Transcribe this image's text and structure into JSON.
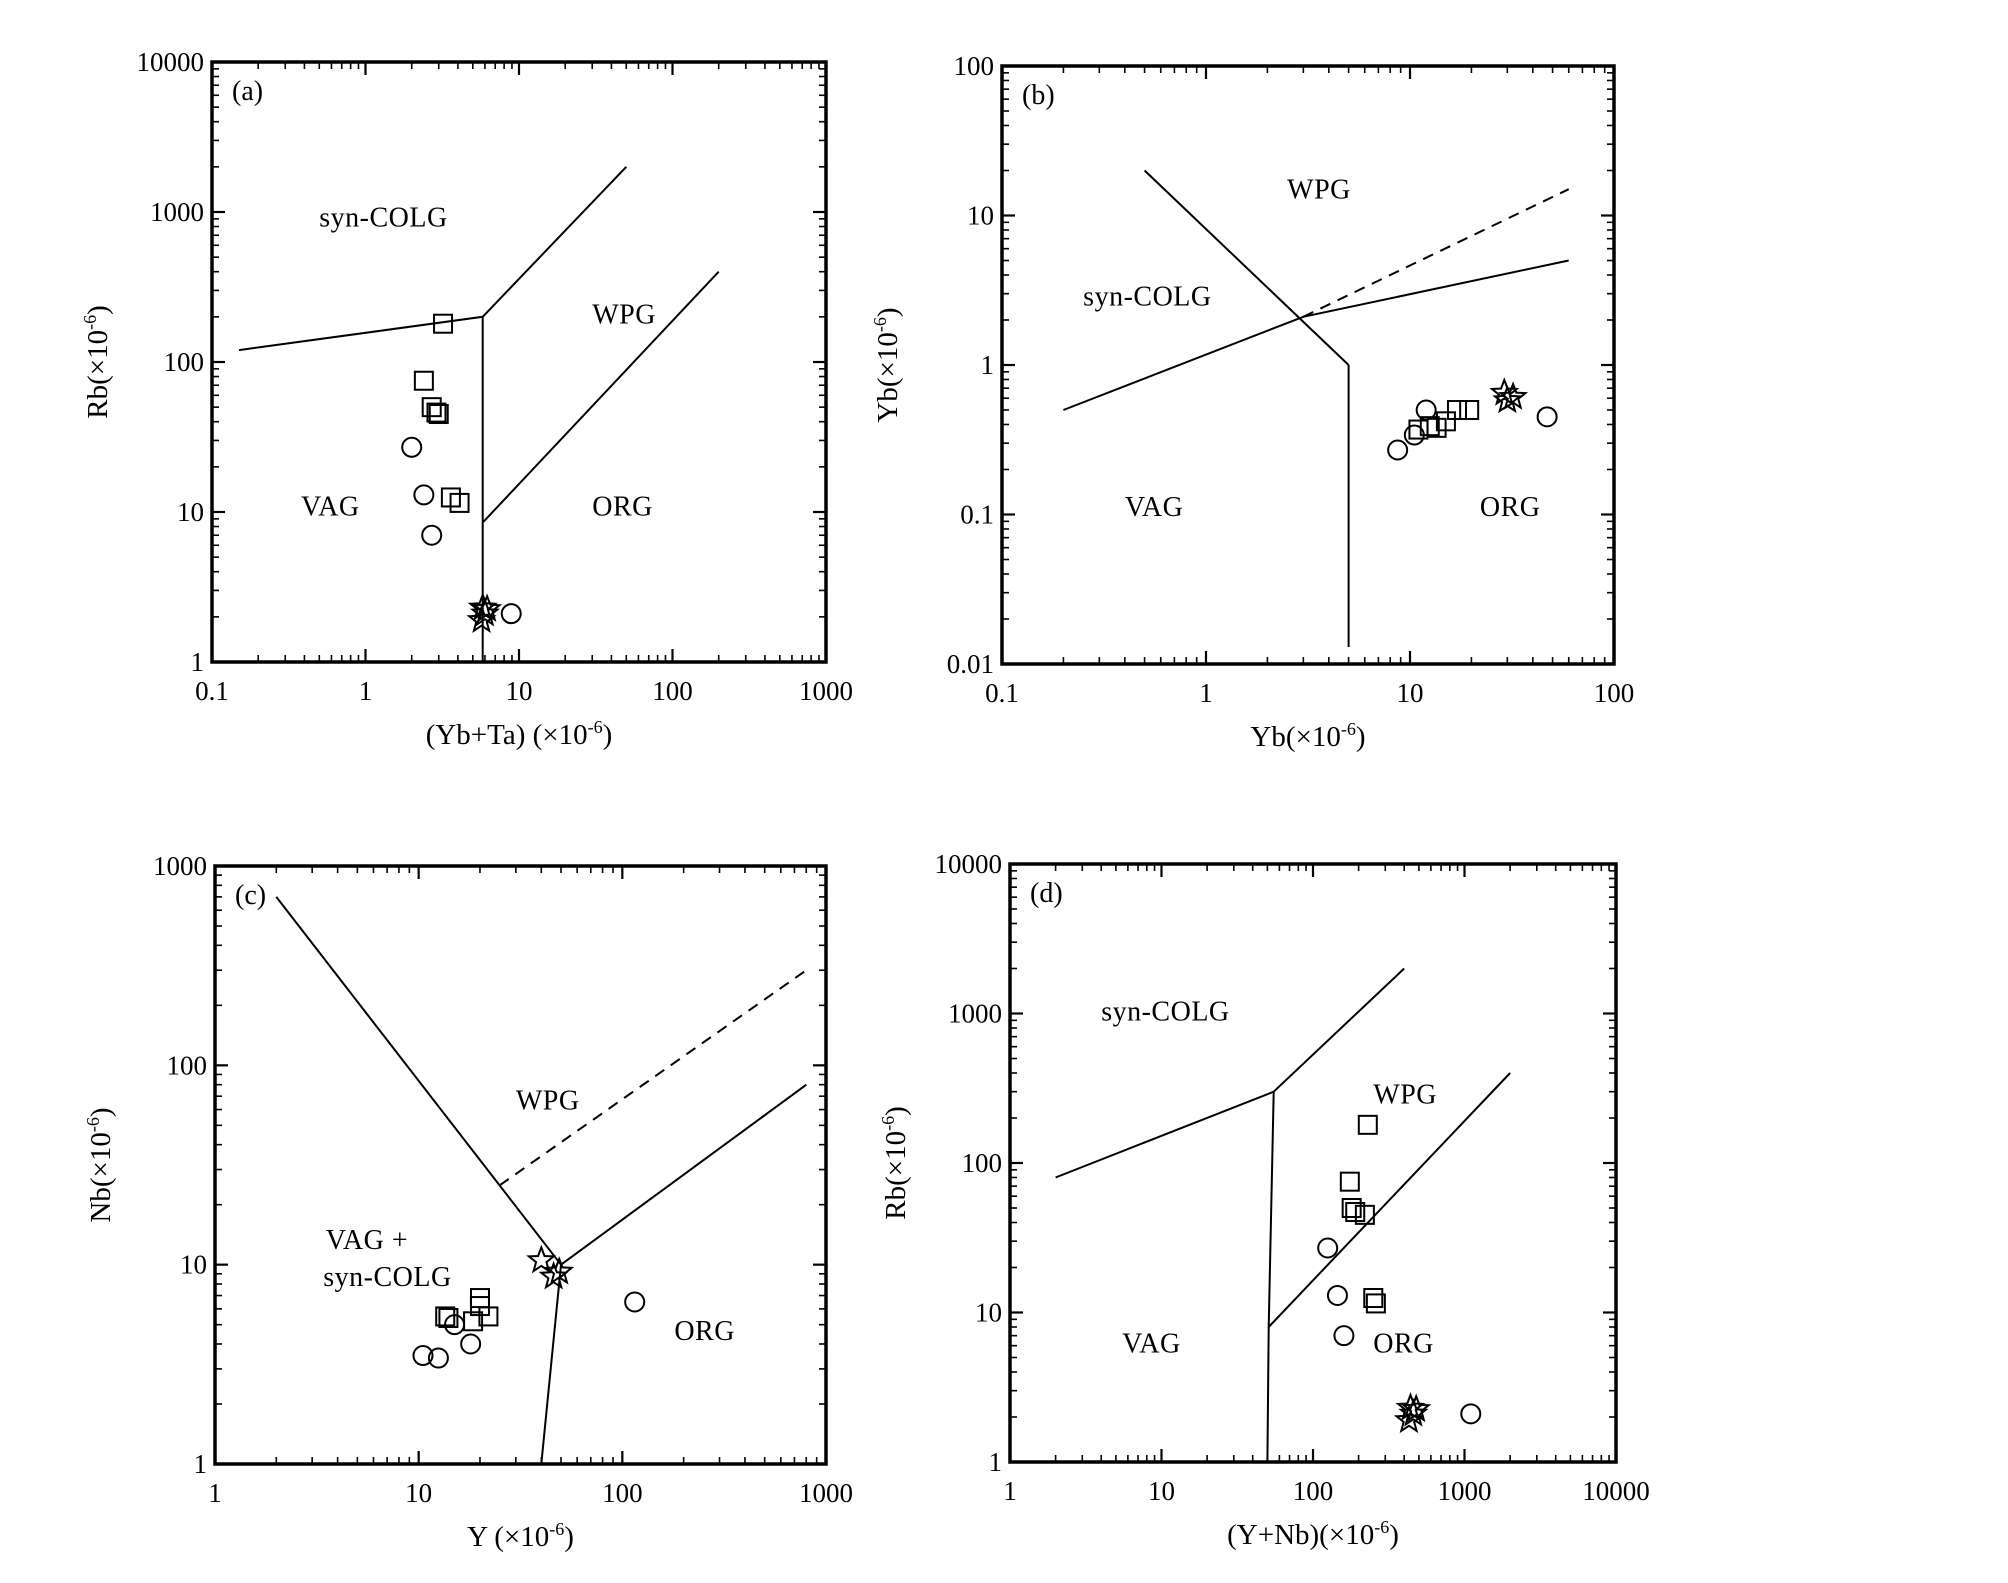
{
  "chart_data": [
    {
      "id": "a",
      "type": "scatter",
      "panel_label": "(a)",
      "xscale": "log",
      "yscale": "log",
      "xlim": [
        0.1,
        1000
      ],
      "ylim": [
        1,
        10000
      ],
      "xticks": [
        "0.1",
        "1",
        "10",
        "100",
        "1000"
      ],
      "yticks": [
        "1",
        "10",
        "100",
        "1000",
        "10000"
      ],
      "xlabel": "(Yb+Ta) (×10",
      "xlabel_sup": "-6",
      "xlabel_end": ")",
      "ylabel": "Rb(×10",
      "ylabel_sup": "-6",
      "ylabel_end": ")",
      "fields": [
        {
          "text": "syn-COLG",
          "x": 0.5,
          "y": 800
        },
        {
          "text": "WPG",
          "x": 30,
          "y": 180
        },
        {
          "text": "VAG",
          "x": 0.38,
          "y": 9.5
        },
        {
          "text": "ORG",
          "x": 30,
          "y": 9.5
        }
      ],
      "boundaries": [
        {
          "style": "solid",
          "points": [
            [
              0.15,
              120
            ],
            [
              5.8,
              200
            ],
            [
              50,
              2000
            ]
          ]
        },
        {
          "style": "solid",
          "points": [
            [
              5.8,
              200
            ],
            [
              5.8,
              1
            ]
          ]
        },
        {
          "style": "solid",
          "points": [
            [
              5.8,
              8.5
            ],
            [
              200,
              400
            ]
          ]
        }
      ],
      "series": [
        {
          "name": "squares",
          "marker": "square",
          "points": [
            [
              3.2,
              180
            ],
            [
              2.4,
              75
            ],
            [
              2.7,
              50
            ],
            [
              3.0,
              45
            ],
            [
              2.9,
              46
            ],
            [
              3.6,
              12.5
            ],
            [
              4.1,
              11.5
            ]
          ]
        },
        {
          "name": "circles",
          "marker": "circle",
          "points": [
            [
              2.0,
              27
            ],
            [
              2.4,
              13
            ],
            [
              2.7,
              7
            ],
            [
              8.9,
              2.1
            ]
          ]
        },
        {
          "name": "stars",
          "marker": "star",
          "points": [
            [
              5.8,
              2.3
            ],
            [
              6.2,
              2.25
            ],
            [
              5.7,
              1.9
            ],
            [
              6.0,
              2.1
            ]
          ]
        }
      ]
    },
    {
      "id": "b",
      "type": "scatter",
      "panel_label": "(b)",
      "xscale": "log",
      "yscale": "log",
      "xlim": [
        0.1,
        100
      ],
      "ylim": [
        0.01,
        100
      ],
      "xticks": [
        "0.1",
        "1",
        "10",
        "100"
      ],
      "yticks": [
        "0.01",
        "0.1",
        "1",
        "10",
        "100"
      ],
      "xlabel": "Yb(×10",
      "xlabel_sup": "-6",
      "xlabel_end": ")",
      "ylabel": "Yb(×10",
      "ylabel_sup": "-6",
      "ylabel_end": ")",
      "fields": [
        {
          "text": "WPG",
          "x": 2.5,
          "y": 13
        },
        {
          "text": "syn-COLG",
          "x": 0.25,
          "y": 2.5
        },
        {
          "text": "VAG",
          "x": 0.4,
          "y": 0.098
        },
        {
          "text": "ORG",
          "x": 22,
          "y": 0.098
        }
      ],
      "boundaries": [
        {
          "style": "solid",
          "points": [
            [
              0.2,
              0.5
            ],
            [
              3,
              2.1
            ],
            [
              60,
              5
            ]
          ]
        },
        {
          "style": "dashed",
          "points": [
            [
              3,
              2.1
            ],
            [
              60,
              15
            ]
          ]
        },
        {
          "style": "solid",
          "points": [
            [
              0.5,
              20
            ],
            [
              5,
              1
            ]
          ]
        },
        {
          "style": "solid",
          "points": [
            [
              5,
              1
            ],
            [
              5,
              0.013
            ]
          ]
        }
      ],
      "series": [
        {
          "name": "squares",
          "marker": "square",
          "points": [
            [
              11,
              0.37
            ],
            [
              12.5,
              0.39
            ],
            [
              13.5,
              0.38
            ],
            [
              15,
              0.42
            ],
            [
              17,
              0.5
            ],
            [
              19.5,
              0.5
            ]
          ]
        },
        {
          "name": "circles",
          "marker": "circle",
          "points": [
            [
              8.7,
              0.27
            ],
            [
              10.5,
              0.34
            ],
            [
              12,
              0.5
            ],
            [
              47,
              0.45
            ]
          ]
        },
        {
          "name": "stars",
          "marker": "star",
          "points": [
            [
              29,
              0.65
            ],
            [
              30,
              0.58
            ],
            [
              32,
              0.61
            ]
          ]
        }
      ]
    },
    {
      "id": "c",
      "type": "scatter",
      "panel_label": "(c)",
      "xscale": "log",
      "yscale": "log",
      "xlim": [
        1,
        1000
      ],
      "ylim": [
        1,
        1000
      ],
      "xticks": [
        "1",
        "10",
        "100",
        "1000"
      ],
      "yticks": [
        "1",
        "10",
        "100",
        "1000"
      ],
      "xlabel": "Y (×10",
      "xlabel_sup": "-6",
      "xlabel_end": ")",
      "ylabel": "Nb(×10",
      "ylabel_sup": "-6",
      "ylabel_end": ")",
      "fields": [
        {
          "text": "WPG",
          "x": 30,
          "y": 60
        },
        {
          "text": "VAG +",
          "x": 3.5,
          "y": 12
        },
        {
          "text": "syn-COLG",
          "x": 3.4,
          "y": 7.8
        },
        {
          "text": "ORG",
          "x": 180,
          "y": 4.2
        }
      ],
      "boundaries": [
        {
          "style": "solid",
          "points": [
            [
              2,
              700
            ],
            [
              50,
              10
            ]
          ]
        },
        {
          "style": "solid",
          "points": [
            [
              50,
              10
            ],
            [
              800,
              80
            ]
          ]
        },
        {
          "style": "solid",
          "points": [
            [
              50,
              10
            ],
            [
              40,
              1
            ]
          ]
        },
        {
          "style": "dashed",
          "points": [
            [
              25,
              25
            ],
            [
              800,
              300
            ]
          ]
        }
      ],
      "series": [
        {
          "name": "squares",
          "marker": "square",
          "points": [
            [
              20,
              6.8
            ],
            [
              20,
              6.2
            ],
            [
              13.5,
              5.5
            ],
            [
              14,
              5.4
            ],
            [
              18.5,
              5.2
            ],
            [
              22,
              5.5
            ]
          ]
        },
        {
          "name": "circles",
          "marker": "circle",
          "points": [
            [
              10.5,
              3.5
            ],
            [
              12.5,
              3.4
            ],
            [
              15,
              5
            ],
            [
              18,
              4
            ],
            [
              115,
              6.5
            ]
          ]
        },
        {
          "name": "stars",
          "marker": "star",
          "points": [
            [
              40,
              10.5
            ],
            [
              46,
              8.7
            ],
            [
              49,
              9.2
            ]
          ]
        }
      ]
    },
    {
      "id": "d",
      "type": "scatter",
      "panel_label": "(d)",
      "xscale": "log",
      "yscale": "log",
      "xlim": [
        1,
        10000
      ],
      "ylim": [
        1,
        10000
      ],
      "xticks": [
        "1",
        "10",
        "100",
        "1000",
        "10000"
      ],
      "yticks": [
        "1",
        "10",
        "100",
        "1000",
        "10000"
      ],
      "xlabel": "(Y+Nb)(×10",
      "xlabel_sup": "-6",
      "xlabel_end": ")",
      "ylabel": "Rb(×10",
      "ylabel_sup": "-6",
      "ylabel_end": ")",
      "fields": [
        {
          "text": "syn-COLG",
          "x": 4,
          "y": 900
        },
        {
          "text": "WPG",
          "x": 250,
          "y": 250
        },
        {
          "text": "VAG",
          "x": 5.5,
          "y": 5.4
        },
        {
          "text": "ORG",
          "x": 250,
          "y": 5.4
        }
      ],
      "boundaries": [
        {
          "style": "solid",
          "points": [
            [
              2,
              80
            ],
            [
              55,
              300
            ],
            [
              400,
              2000
            ]
          ]
        },
        {
          "style": "solid",
          "points": [
            [
              55,
              300
            ],
            [
              51,
              8
            ],
            [
              50,
              1
            ]
          ]
        },
        {
          "style": "solid",
          "points": [
            [
              51,
              8
            ],
            [
              2000,
              400
            ]
          ]
        }
      ],
      "series": [
        {
          "name": "squares",
          "marker": "square",
          "points": [
            [
              230,
              180
            ],
            [
              175,
              75
            ],
            [
              180,
              50
            ],
            [
              190,
              47
            ],
            [
              220,
              45
            ],
            [
              250,
              12.5
            ],
            [
              260,
              11.5
            ]
          ]
        },
        {
          "name": "circles",
          "marker": "circle",
          "points": [
            [
              125,
              27
            ],
            [
              145,
              13
            ],
            [
              160,
              7
            ],
            [
              1100,
              2.1
            ]
          ]
        },
        {
          "name": "stars",
          "marker": "star",
          "points": [
            [
              440,
              2.3
            ],
            [
              480,
              2.25
            ],
            [
              430,
              1.9
            ],
            [
              460,
              2.1
            ]
          ]
        }
      ]
    }
  ]
}
